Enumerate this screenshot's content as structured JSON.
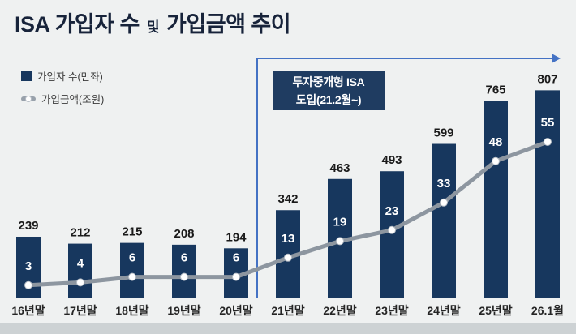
{
  "title": {
    "part1": "ISA 가입자 수",
    "part2": "및",
    "part3": "가입금액 추이"
  },
  "legend": {
    "bars": "가입자 수(만좌)",
    "line": "가입금액(조원)"
  },
  "annotation": {
    "line1": "투자중개형 ISA",
    "line2": "도입(21.2월~)"
  },
  "chart_data": {
    "type": "bar+line",
    "title": "ISA 가입자 수 및 가입금액 추이",
    "categories": [
      "16년말",
      "17년말",
      "18년말",
      "19년말",
      "20년말",
      "21년말",
      "22년말",
      "23년말",
      "24년말",
      "25년말",
      "26.1월"
    ],
    "series": [
      {
        "name": "가입자 수(만좌)",
        "type": "bar",
        "values": [
          239,
          212,
          215,
          208,
          194,
          342,
          463,
          493,
          599,
          765,
          807
        ]
      },
      {
        "name": "가입금액(조원)",
        "type": "line",
        "values": [
          3,
          4,
          6,
          6,
          6,
          13,
          19,
          23,
          33,
          48,
          55
        ]
      }
    ],
    "annotation": "투자중개형 ISA 도입(21.2월~)",
    "legend_position": "top-left",
    "grid": false,
    "colors": {
      "bar": "#17375e",
      "line": "#8d96a0",
      "marker": "#ffffff",
      "marker_stroke": "#b6bdc5",
      "arrow": "#4472c4",
      "bar_label": "#1a1a1a",
      "line_label": "#ffffff",
      "axis_label": "#252525",
      "annotation_bg": "#1f3c61",
      "annotation_text": "#ffffff",
      "background": "#eff1f1",
      "bottom_strip": "#cdd2d4"
    }
  }
}
